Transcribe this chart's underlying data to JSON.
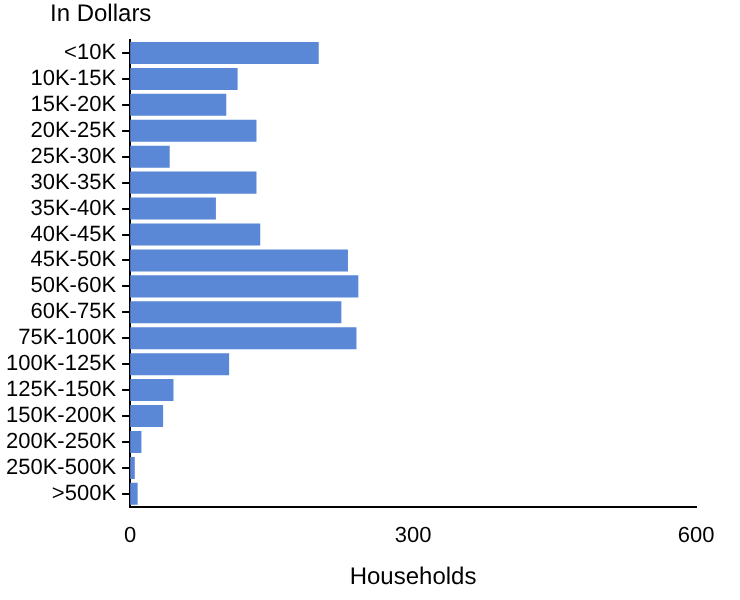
{
  "chart_data": {
    "type": "bar",
    "orientation": "horizontal",
    "ylabel": "In Dollars",
    "xlabel": "Households",
    "categories": [
      "<10K",
      "10K-15K",
      "15K-20K",
      "20K-25K",
      "25K-30K",
      "30K-35K",
      "35K-40K",
      "40K-45K",
      "45K-50K",
      "50K-60K",
      "60K-75K",
      "75K-100K",
      "100K-125K",
      "125K-150K",
      "150K-200K",
      "200K-250K",
      "250K-500K",
      ">500K"
    ],
    "values": [
      200,
      114,
      102,
      134,
      42,
      134,
      91,
      138,
      231,
      242,
      224,
      240,
      105,
      46,
      35,
      12,
      5,
      8
    ],
    "color": "#5a87d6",
    "xlim": [
      0,
      600
    ],
    "xticks": [
      0,
      300,
      600
    ],
    "grid": false,
    "legend": false
  }
}
